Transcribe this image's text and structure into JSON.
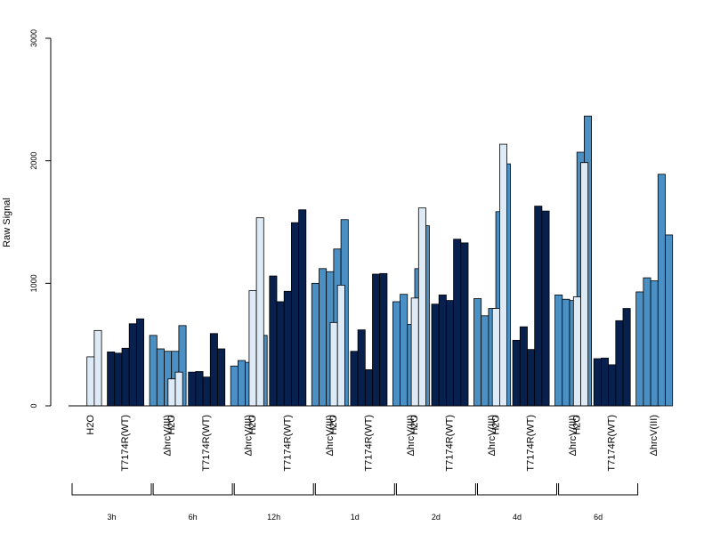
{
  "chart_data": {
    "type": "bar",
    "title": "",
    "ylabel": "Raw Signal",
    "ylim": [
      0,
      3000
    ],
    "yticks": [
      0,
      1000,
      2000,
      3000
    ],
    "grid": false,
    "legend": "none",
    "condition_labels": [
      "H2O",
      "T7174R(WT)",
      "ΔhrcV(III)"
    ],
    "condition_colors": [
      "#deebf7",
      "#08204e",
      "#4a90c4"
    ],
    "groups": [
      {
        "time": "3h",
        "conditions": [
          {
            "label": "H2O",
            "values": [
              0,
              400,
              615
            ]
          },
          {
            "label": "T7174R(WT)",
            "values": [
              440,
              430,
              470,
              670,
              710
            ]
          },
          {
            "label": "ΔhrcV(III)",
            "values": [
              575,
              465,
              445,
              445,
              655
            ]
          }
        ]
      },
      {
        "time": "6h",
        "conditions": [
          {
            "label": "H2O",
            "values": [
              0,
              220,
              275
            ]
          },
          {
            "label": "T7174R(WT)",
            "values": [
              275,
              280,
              235,
              590,
              465
            ]
          },
          {
            "label": "ΔhrcV(III)",
            "values": [
              325,
              370,
              355,
              450,
              575
            ]
          }
        ]
      },
      {
        "time": "12h",
        "conditions": [
          {
            "label": "H2O",
            "values": [
              0,
              940,
              1535
            ]
          },
          {
            "label": "T7174R(WT)",
            "values": [
              1060,
              850,
              935,
              1495,
              1600
            ]
          },
          {
            "label": "ΔhrcV(III)",
            "values": [
              1000,
              1120,
              1095,
              1280,
              1520
            ]
          }
        ]
      },
      {
        "time": "1d",
        "conditions": [
          {
            "label": "H2O",
            "values": [
              0,
              680,
              985
            ]
          },
          {
            "label": "T7174R(WT)",
            "values": [
              445,
              620,
              295,
              1075,
              1080
            ]
          },
          {
            "label": "ΔhrcV(III)",
            "values": [
              850,
              910,
              665,
              1120,
              1470
            ]
          }
        ]
      },
      {
        "time": "2d",
        "conditions": [
          {
            "label": "H2O",
            "values": [
              0,
              880,
              1615
            ]
          },
          {
            "label": "T7174R(WT)",
            "values": [
              830,
              905,
              860,
              1360,
              1330
            ]
          },
          {
            "label": "ΔhrcV(III)",
            "values": [
              875,
              735,
              795,
              1585,
              1975
            ]
          }
        ]
      },
      {
        "time": "4d",
        "conditions": [
          {
            "label": "H2O",
            "values": [
              0,
              795,
              2135
            ]
          },
          {
            "label": "T7174R(WT)",
            "values": [
              535,
              645,
              460,
              1630,
              1590
            ]
          },
          {
            "label": "ΔhrcV(III)",
            "values": [
              905,
              870,
              860,
              2070,
              2365
            ]
          }
        ]
      },
      {
        "time": "6d",
        "conditions": [
          {
            "label": "H2O",
            "values": [
              0,
              890,
              1985
            ]
          },
          {
            "label": "T7174R(WT)",
            "values": [
              385,
              390,
              335,
              695,
              795
            ]
          },
          {
            "label": "ΔhrcV(III)",
            "values": [
              930,
              1045,
              1020,
              1890,
              1395
            ]
          }
        ]
      }
    ]
  }
}
